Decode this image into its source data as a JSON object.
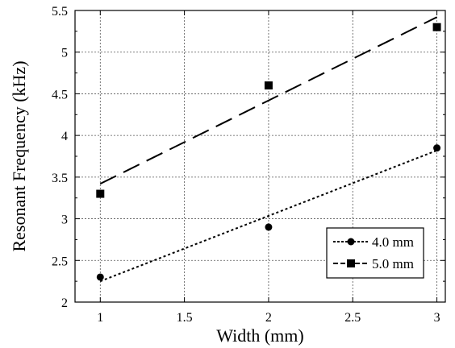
{
  "chart_data": {
    "type": "scatter",
    "xlabel": "Width (mm)",
    "ylabel": "Resonant Frequency (kHz)",
    "xlim": [
      0.85,
      3.05
    ],
    "ylim": [
      2,
      5.5
    ],
    "xticks": [
      1,
      1.5,
      2,
      2.5,
      3
    ],
    "xtick_labels": [
      "1",
      "1.5",
      "2",
      "2.5",
      "3"
    ],
    "yticks": [
      2,
      2.5,
      3,
      3.5,
      4,
      4.5,
      5,
      5.5
    ],
    "ytick_labels": [
      "2",
      "2.5",
      "3",
      "3.5",
      "4",
      "4.5",
      "5",
      "5.5"
    ],
    "grid": true,
    "legend_position": "bottom-right",
    "series": [
      {
        "name": "4.0 mm",
        "marker": "circle",
        "line_style": "dotted",
        "color": "#000000",
        "x": [
          1,
          2,
          3
        ],
        "y": [
          2.3,
          2.9,
          3.85
        ],
        "fit": {
          "x": [
            1,
            3
          ],
          "y": [
            2.25,
            3.82
          ]
        }
      },
      {
        "name": "5.0 mm",
        "marker": "square",
        "line_style": "dashed",
        "color": "#000000",
        "x": [
          1,
          2,
          3
        ],
        "y": [
          3.3,
          4.6,
          5.3
        ],
        "fit": {
          "x": [
            1,
            3
          ],
          "y": [
            3.42,
            5.42
          ]
        }
      }
    ]
  }
}
